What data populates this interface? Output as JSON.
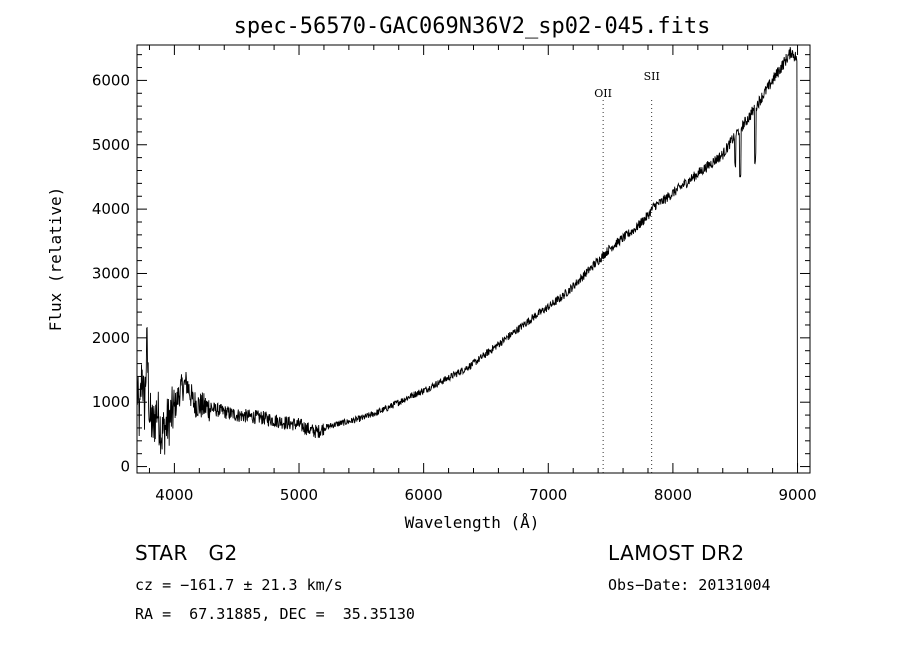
{
  "chart_data": {
    "type": "line",
    "title": "spec-56570-GAC069N36V2_sp02-045.fits",
    "xlabel": "Wavelength (Å)",
    "ylabel": "Flux (relative)",
    "xlim": [
      3700,
      9100
    ],
    "ylim": [
      -100,
      6550
    ],
    "xticks": [
      4000,
      5000,
      6000,
      7000,
      8000,
      9000
    ],
    "yticks": [
      0,
      1000,
      2000,
      3000,
      4000,
      5000,
      6000
    ],
    "grid": false,
    "series": [
      {
        "x": [
          3700,
          3720,
          3740,
          3760,
          3780,
          3800,
          3830,
          3860,
          3900,
          3950,
          4000,
          4050,
          4100,
          4150,
          4200,
          4300,
          4400,
          4500,
          4600,
          4700,
          4800,
          4900,
          5000,
          5100,
          5150,
          5200,
          5300,
          5400,
          5500,
          5600,
          5700,
          5800,
          5900,
          6000,
          6100,
          6200,
          6300,
          6400,
          6500,
          6600,
          6700,
          6800,
          6900,
          7000,
          7100,
          7200,
          7300,
          7400,
          7500,
          7600,
          7700,
          7800,
          7850,
          7900,
          8000,
          8100,
          8200,
          8300,
          8400,
          8450,
          8500,
          8540,
          8600,
          8650,
          8700,
          8800,
          8900,
          8950,
          8990,
          9000
        ],
        "y": [
          1200,
          700,
          1500,
          900,
          1900,
          800,
          600,
          900,
          500,
          700,
          900,
          1200,
          1300,
          1000,
          950,
          900,
          850,
          800,
          780,
          760,
          720,
          680,
          650,
          560,
          540,
          600,
          660,
          700,
          750,
          820,
          900,
          1000,
          1100,
          1180,
          1280,
          1380,
          1480,
          1600,
          1750,
          1900,
          2050,
          2200,
          2350,
          2480,
          2620,
          2800,
          3000,
          3200,
          3400,
          3550,
          3700,
          3900,
          4050,
          4100,
          4250,
          4400,
          4550,
          4700,
          4850,
          5000,
          5150,
          5250,
          5400,
          5550,
          5700,
          6000,
          6300,
          6450,
          6350,
          0
        ]
      }
    ],
    "lines": [
      {
        "label": "OII",
        "x": 7440
      },
      {
        "label": "SII",
        "x": 7830
      }
    ]
  },
  "info": {
    "object": "STAR   G2",
    "survey": "LAMOST DR2",
    "cz": "cz = −161.7 ± 21.3 km/s",
    "obsdate": "Obs−Date: 20131004",
    "coords": "RA =  67.31885, DEC =  35.35130"
  }
}
